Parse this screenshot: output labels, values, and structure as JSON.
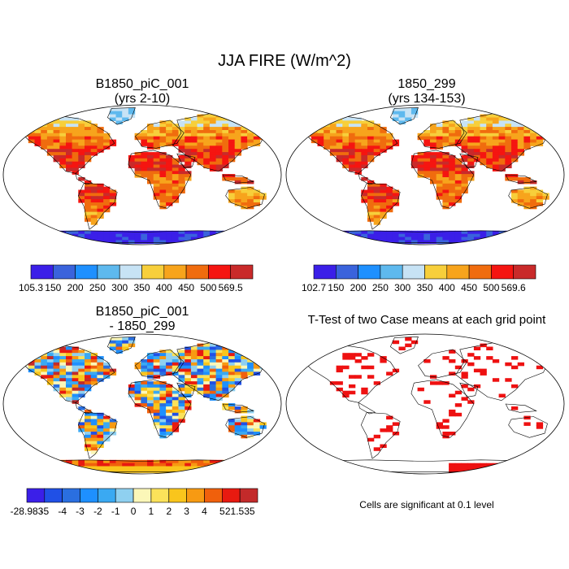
{
  "title": "JJA FIRE (W/m^2)",
  "panels": {
    "p1": {
      "title_line1": "B1850_piC_001",
      "title_line2": "(yrs 2-10)"
    },
    "p2": {
      "title_line1": "1850_299",
      "title_line2": "(yrs 134-153)"
    },
    "p3": {
      "title_line1": "B1850_piC_001",
      "title_line2": "- 1850_299"
    },
    "p4": {
      "title_line1": "T-Test of two Case means at each grid point",
      "note": "Cells are significant at 0.1 level"
    }
  },
  "chart_data": [
    {
      "type": "heatmap",
      "name": "case1",
      "title": "B1850_piC_001 (yrs 2-10)",
      "variable": "JJA FIRE (W/m^2)",
      "colorbar": {
        "min_label": "105.3",
        "max_label": "569.5",
        "levels": [
          150,
          200,
          250,
          300,
          350,
          400,
          450,
          500
        ],
        "colors": [
          "#3b1fe8",
          "#3a63dc",
          "#1e90ff",
          "#5eb9ee",
          "#c7e3f5",
          "#f7cf3b",
          "#f7a41c",
          "#f06c0e",
          "#f51511",
          "#c92a2a"
        ]
      }
    },
    {
      "type": "heatmap",
      "name": "case2",
      "title": "1850_299 (yrs 134-153)",
      "variable": "JJA FIRE (W/m^2)",
      "colorbar": {
        "min_label": "102.7",
        "max_label": "569.6",
        "levels": [
          150,
          200,
          250,
          300,
          350,
          400,
          450,
          500
        ],
        "colors": [
          "#3b1fe8",
          "#3a63dc",
          "#1e90ff",
          "#5eb9ee",
          "#c7e3f5",
          "#f7cf3b",
          "#f7a41c",
          "#f06c0e",
          "#f51511",
          "#c92a2a"
        ]
      }
    },
    {
      "type": "heatmap",
      "name": "difference",
      "title": "B1850_piC_001 - 1850_299",
      "colorbar": {
        "min_label": "-28.983",
        "max_label": "21.535",
        "levels": [
          -5,
          -4,
          -3,
          -2,
          -1,
          0,
          1,
          2,
          3,
          4,
          5
        ],
        "colors": [
          "#3b1fe8",
          "#2050e6",
          "#2a6fe0",
          "#1e90ff",
          "#3aa9f2",
          "#8fd0f0",
          "#fbf7b8",
          "#fbe25a",
          "#f9c51c",
          "#f79a12",
          "#f0600c",
          "#e81a10",
          "#c32a2a"
        ]
      }
    },
    {
      "type": "heatmap",
      "name": "ttest",
      "title": "T-Test of two Case means at each grid point",
      "significance_level": 0.1,
      "significant_color": "#ee1111"
    }
  ],
  "colors": {
    "land_outline": "#000000",
    "ocean": "#ffffff",
    "antarctica_cold": "#3b1fe8"
  }
}
